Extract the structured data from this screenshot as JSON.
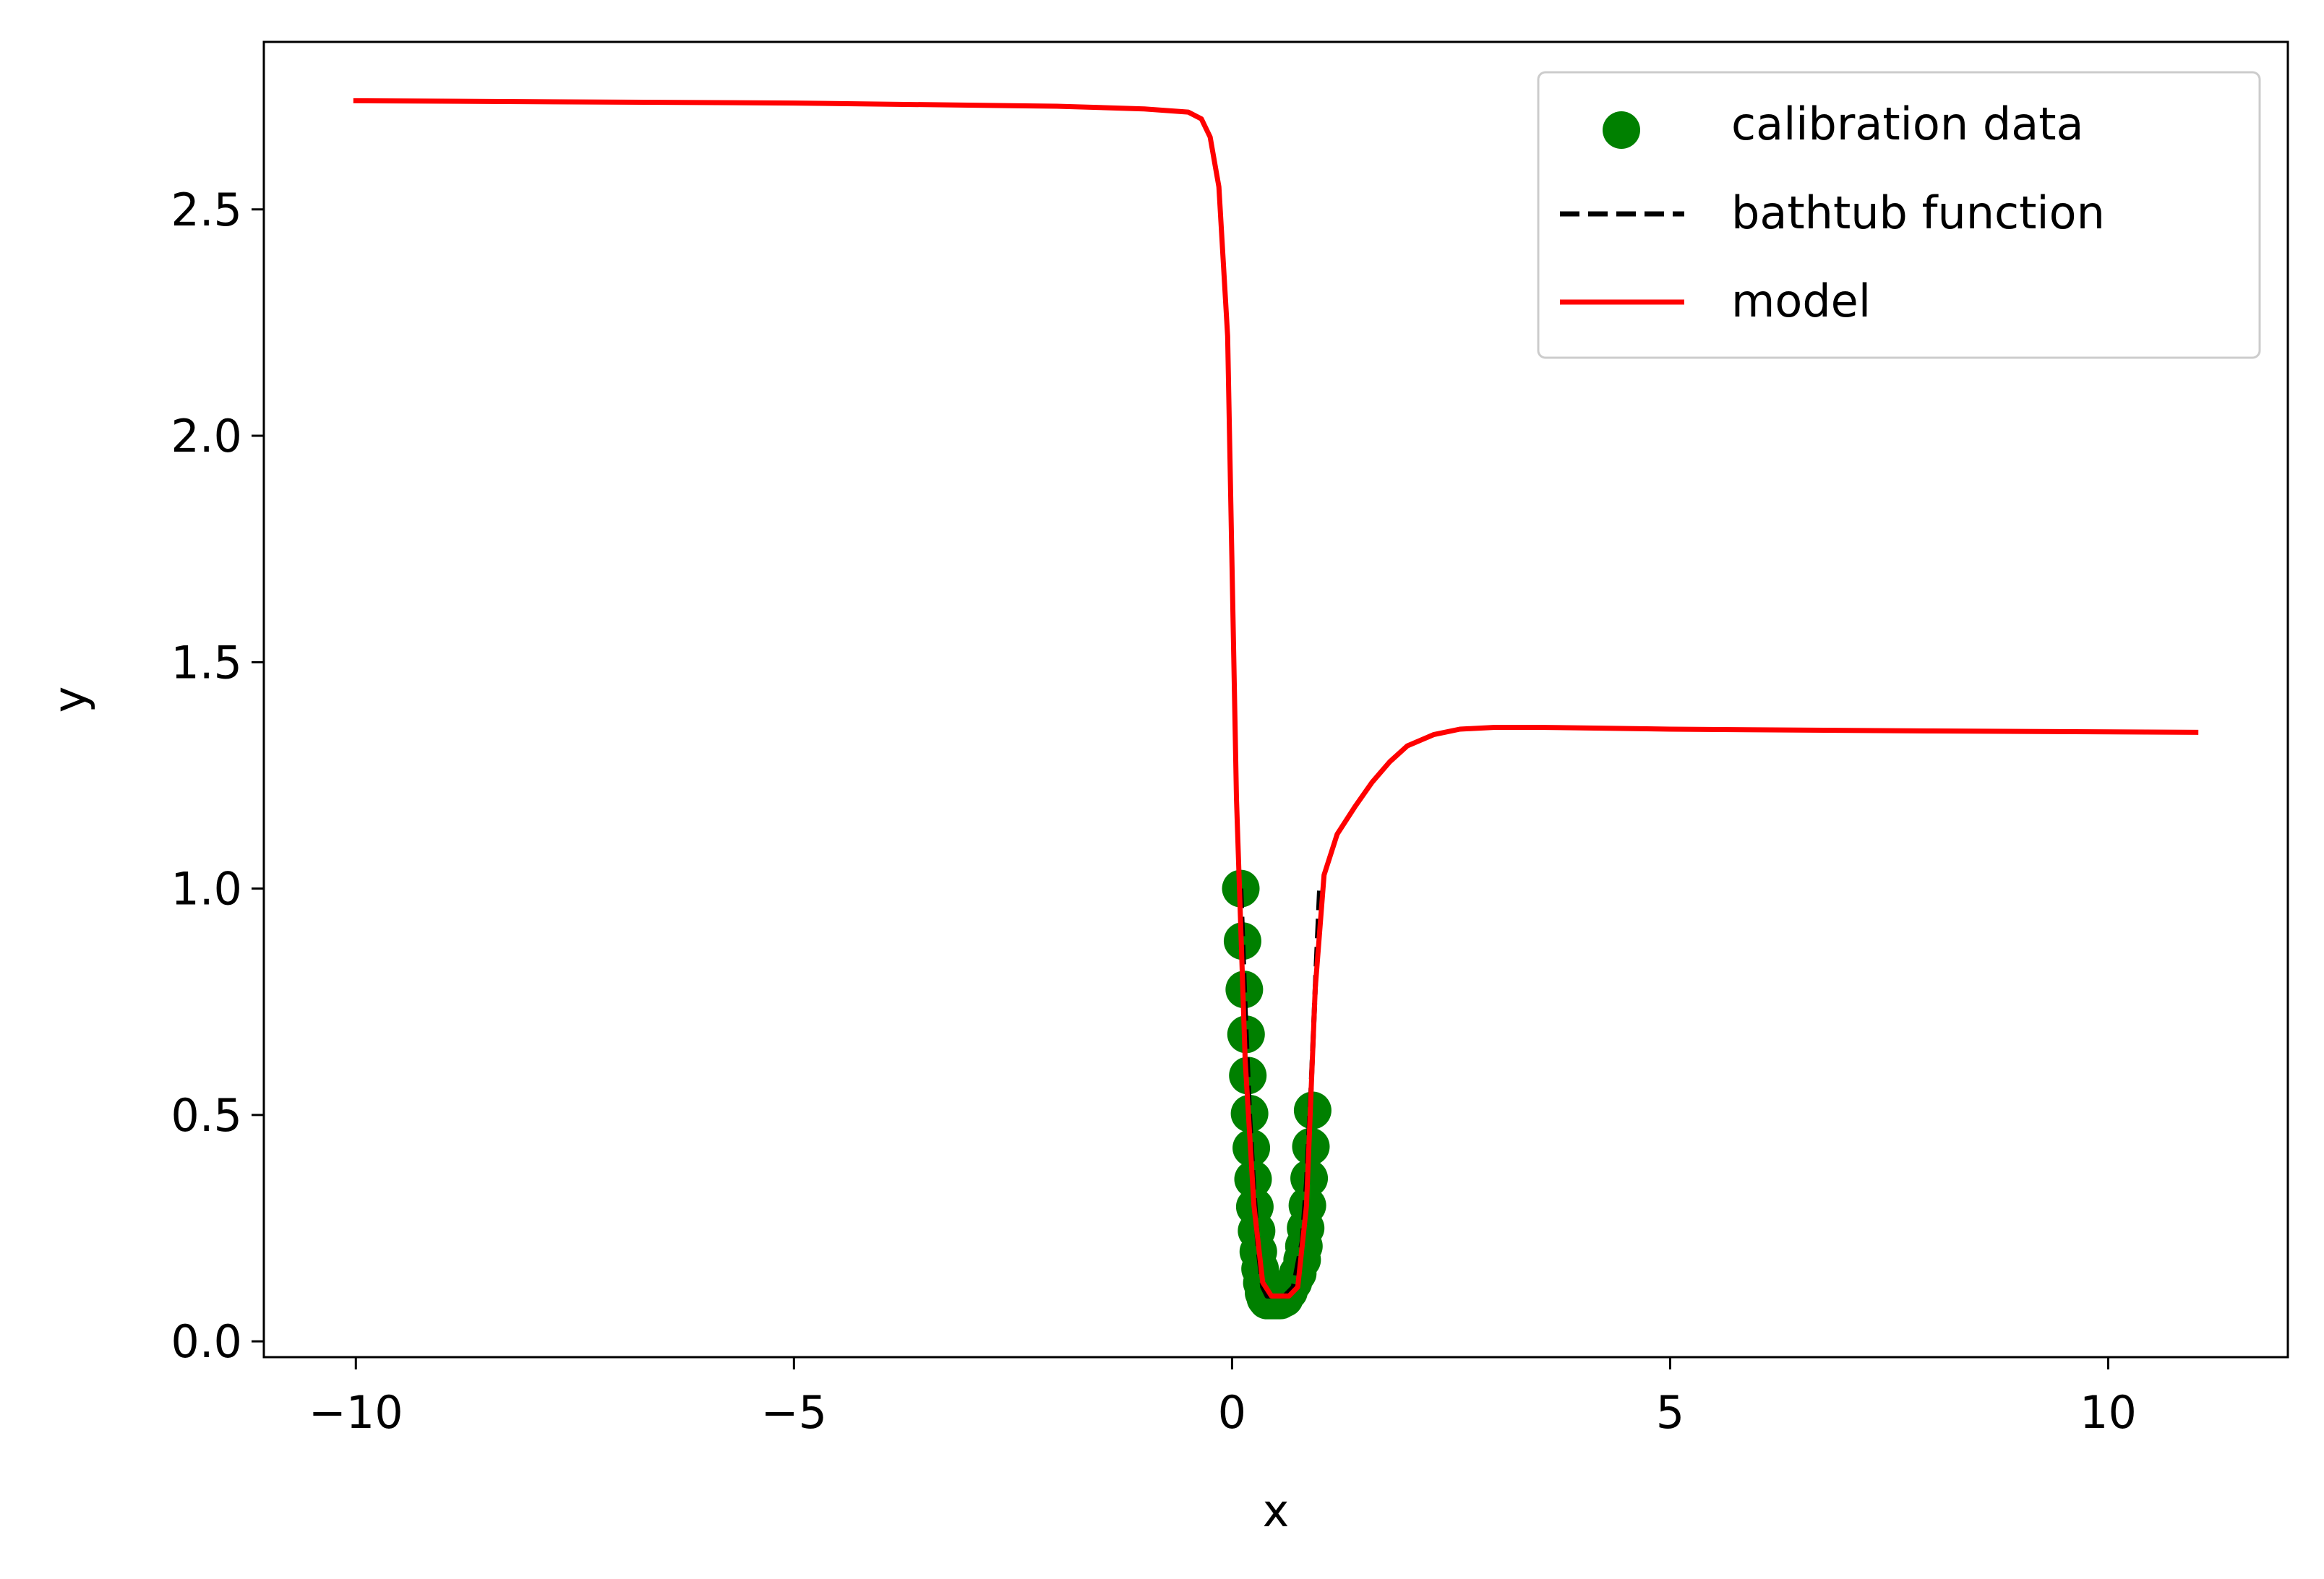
{
  "chart_data": {
    "type": "line",
    "title": "",
    "xlabel": "x",
    "ylabel": "y",
    "xlim": [
      -11.05,
      12.05
    ],
    "ylim": [
      -0.035,
      2.87
    ],
    "xticks": [
      -10,
      -5,
      0,
      5,
      10
    ],
    "yticks": [
      0.0,
      0.5,
      1.0,
      1.5,
      2.0,
      2.5
    ],
    "xtick_labels": [
      "−10",
      "−5",
      "0",
      "5",
      "10"
    ],
    "ytick_labels": [
      "0.0",
      "0.5",
      "1.0",
      "1.5",
      "2.0",
      "2.5"
    ],
    "grid": false,
    "legend_position": "top-right",
    "series": [
      {
        "name": "calibration data",
        "type": "scatter",
        "color": "#008000",
        "x": [
          0.1,
          0.12,
          0.14,
          0.16,
          0.18,
          0.2,
          0.22,
          0.24,
          0.26,
          0.28,
          0.3,
          0.32,
          0.34,
          0.36,
          0.38,
          0.4,
          0.45,
          0.5,
          0.55,
          0.6,
          0.65,
          0.7,
          0.75,
          0.8,
          0.82,
          0.84,
          0.86,
          0.88,
          0.9,
          0.92
        ],
        "y": [
          1.0,
          0.884,
          0.777,
          0.678,
          0.587,
          0.503,
          0.427,
          0.358,
          0.297,
          0.244,
          0.198,
          0.16,
          0.129,
          0.107,
          0.095,
          0.09,
          0.09,
          0.09,
          0.09,
          0.095,
          0.11,
          0.13,
          0.15,
          0.18,
          0.21,
          0.25,
          0.3,
          0.36,
          0.43,
          0.51
        ]
      },
      {
        "name": "bathtub function",
        "type": "line",
        "style": "dashed",
        "color": "#000000",
        "x": [
          0.1,
          0.15,
          0.2,
          0.25,
          0.3,
          0.35,
          0.4,
          0.5,
          0.6,
          0.7,
          0.8,
          0.85,
          0.9,
          0.95,
          1.0
        ],
        "y": [
          1.0,
          0.73,
          0.5,
          0.33,
          0.2,
          0.12,
          0.1,
          0.1,
          0.1,
          0.12,
          0.22,
          0.35,
          0.55,
          0.78,
          1.0
        ]
      },
      {
        "name": "model",
        "type": "line",
        "color": "#ff0000",
        "x": [
          -10,
          -5,
          -2,
          -1,
          -0.5,
          -0.35,
          -0.25,
          -0.15,
          -0.05,
          0.05,
          0.15,
          0.25,
          0.35,
          0.45,
          0.55,
          0.65,
          0.75,
          0.85,
          0.95,
          1.05,
          1.2,
          1.4,
          1.6,
          1.8,
          2.0,
          2.3,
          2.6,
          3.0,
          3.5,
          5.0,
          8.0,
          11.0
        ],
        "y": [
          2.74,
          2.735,
          2.728,
          2.722,
          2.715,
          2.7,
          2.66,
          2.55,
          2.22,
          1.2,
          0.62,
          0.3,
          0.13,
          0.1,
          0.1,
          0.1,
          0.12,
          0.3,
          0.78,
          1.03,
          1.12,
          1.18,
          1.235,
          1.28,
          1.315,
          1.34,
          1.352,
          1.356,
          1.356,
          1.352,
          1.348,
          1.345
        ]
      }
    ]
  }
}
